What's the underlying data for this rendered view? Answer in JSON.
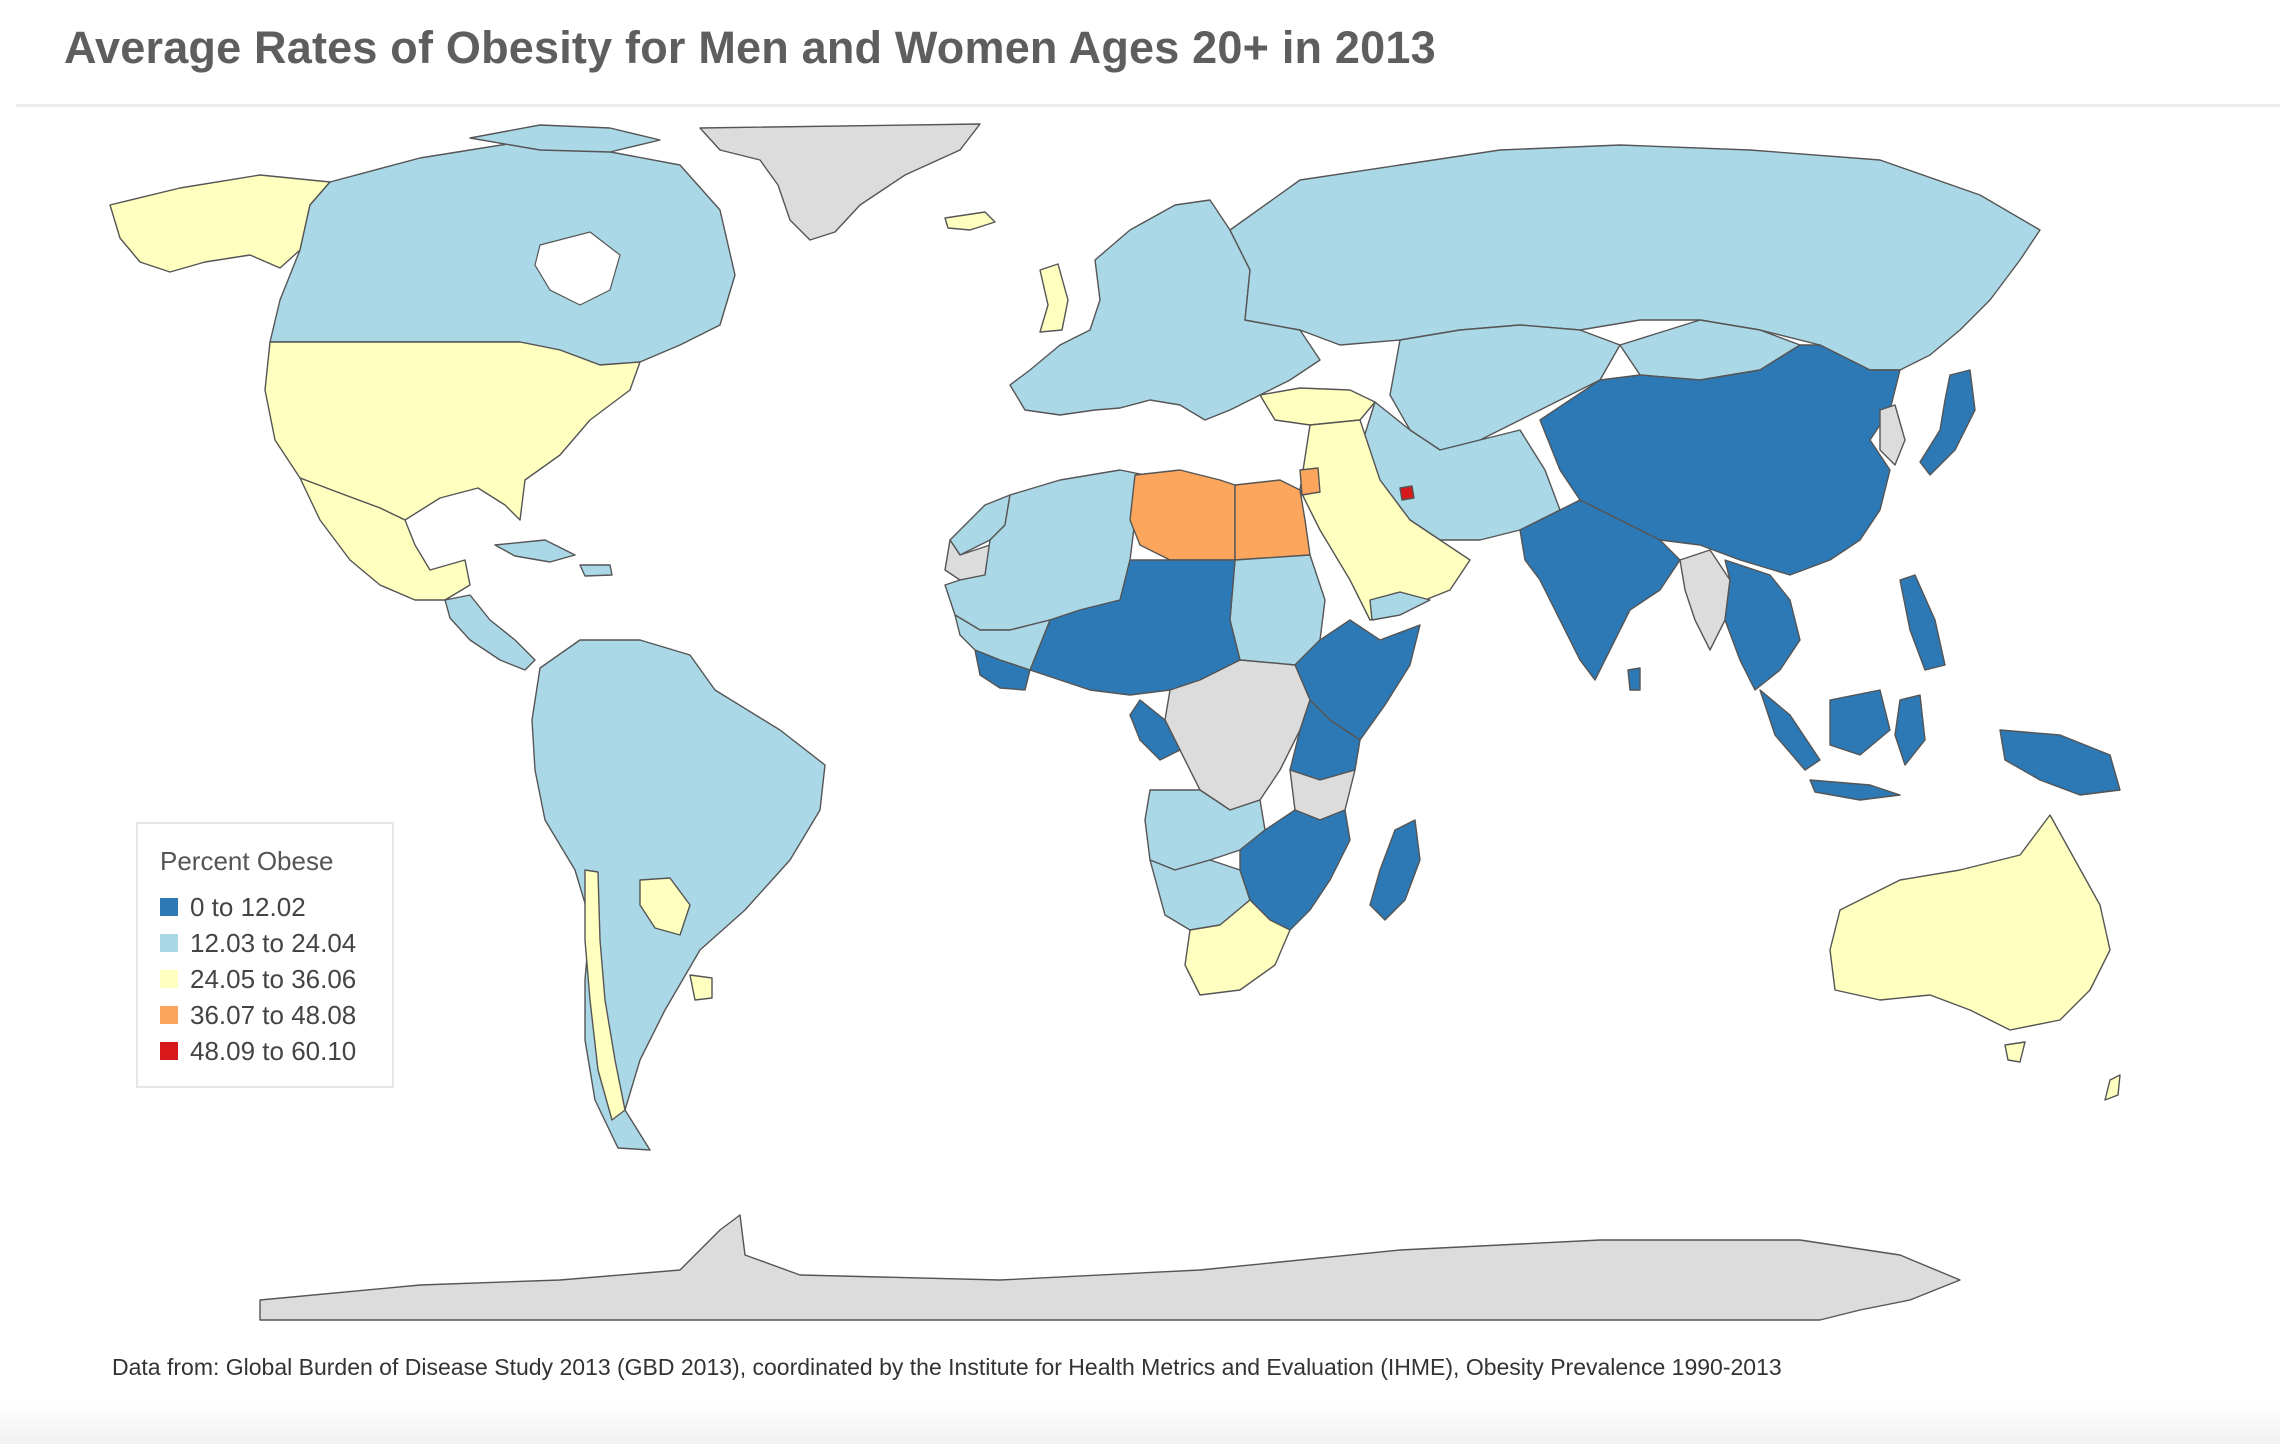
{
  "title": "Average Rates of Obesity for Men and Women Ages 20+ in 2013",
  "legend": {
    "title": "Percent Obese",
    "items": [
      {
        "label": "0 to 12.02",
        "color": "#2c79b6"
      },
      {
        "label": "12.03 to 24.04",
        "color": "#abd8e7"
      },
      {
        "label": "24.05 to 36.06",
        "color": "#ffffbf"
      },
      {
        "label": "36.07 to 48.08",
        "color": "#fca55d"
      },
      {
        "label": "48.09 to 60.10",
        "color": "#d7191c"
      }
    ]
  },
  "no_data_color": "#dcdcdc",
  "source": "Data from: Global Burden of Disease Study 2013 (GBD 2013), coordinated by the Institute for Health Metrics and Evaluation (IHME), Obesity Prevalence 1990-2013"
}
